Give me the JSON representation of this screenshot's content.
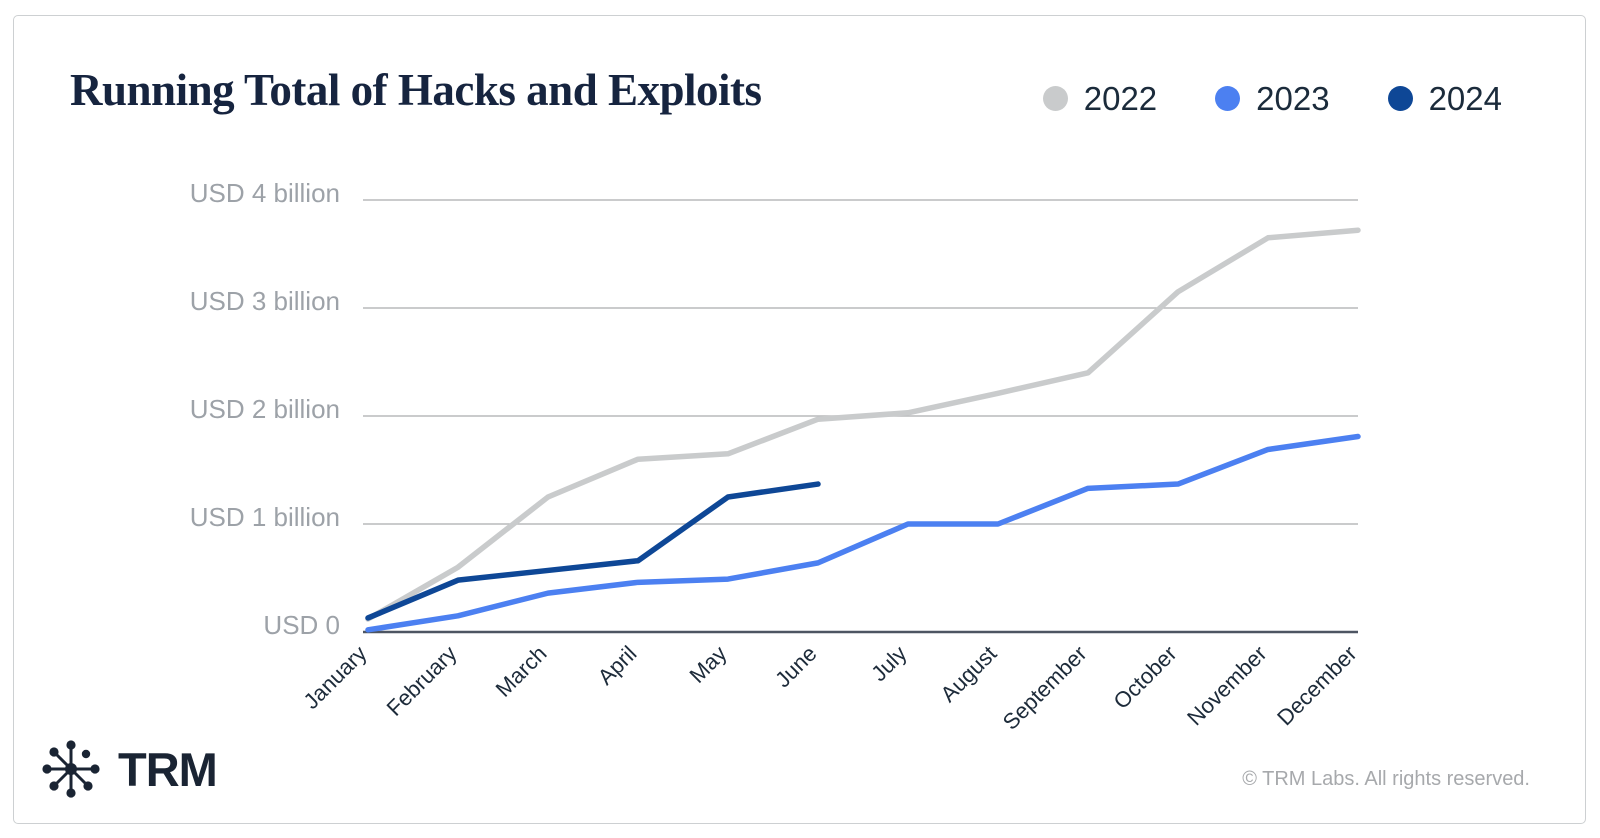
{
  "page": {
    "title": "Running Total of Hacks and Exploits",
    "brand": "TRM",
    "footer": "© TRM Labs. All rights reserved."
  },
  "colors": {
    "title_text": "#16243f",
    "brand_text": "#1a2433",
    "grid_line": "#b9babc",
    "zero_axis_line": "#4d5562",
    "y_tick_text": "#9da2a8",
    "x_tick_text": "#1d2b3a",
    "footer_text": "#a7a9ac",
    "series_2022": "#c9cbcc",
    "series_2023": "#4c80f1",
    "series_2024": "#0e4796"
  },
  "chart_data": {
    "type": "line",
    "title": "Running Total of Hacks and Exploits",
    "unit": "USD billions",
    "xlabel": "",
    "ylabel": "",
    "ylim": [
      0,
      4
    ],
    "grid": true,
    "legend_position": "top-right",
    "x": [
      "January",
      "February",
      "March",
      "April",
      "May",
      "June",
      "July",
      "August",
      "September",
      "October",
      "November",
      "December"
    ],
    "y_ticks": [
      {
        "label": "USD 4 billion",
        "value": 4
      },
      {
        "label": "USD 3 billion",
        "value": 3
      },
      {
        "label": "USD 2 billion",
        "value": 2
      },
      {
        "label": "USD 1 billion",
        "value": 1
      },
      {
        "label": "USD 0",
        "value": 0
      }
    ],
    "series": [
      {
        "name": "2022",
        "color": "#c9cbcc",
        "values": [
          0.12,
          0.6,
          1.25,
          1.6,
          1.65,
          1.97,
          2.03,
          2.21,
          2.4,
          3.15,
          3.65,
          3.72
        ]
      },
      {
        "name": "2023",
        "color": "#4c80f1",
        "values": [
          0.02,
          0.15,
          0.36,
          0.46,
          0.49,
          0.64,
          1.0,
          1.0,
          1.33,
          1.37,
          1.69,
          1.81
        ]
      },
      {
        "name": "2024",
        "color": "#0e4796",
        "values": [
          0.13,
          0.48,
          0.57,
          0.66,
          1.25,
          1.37
        ]
      }
    ]
  }
}
